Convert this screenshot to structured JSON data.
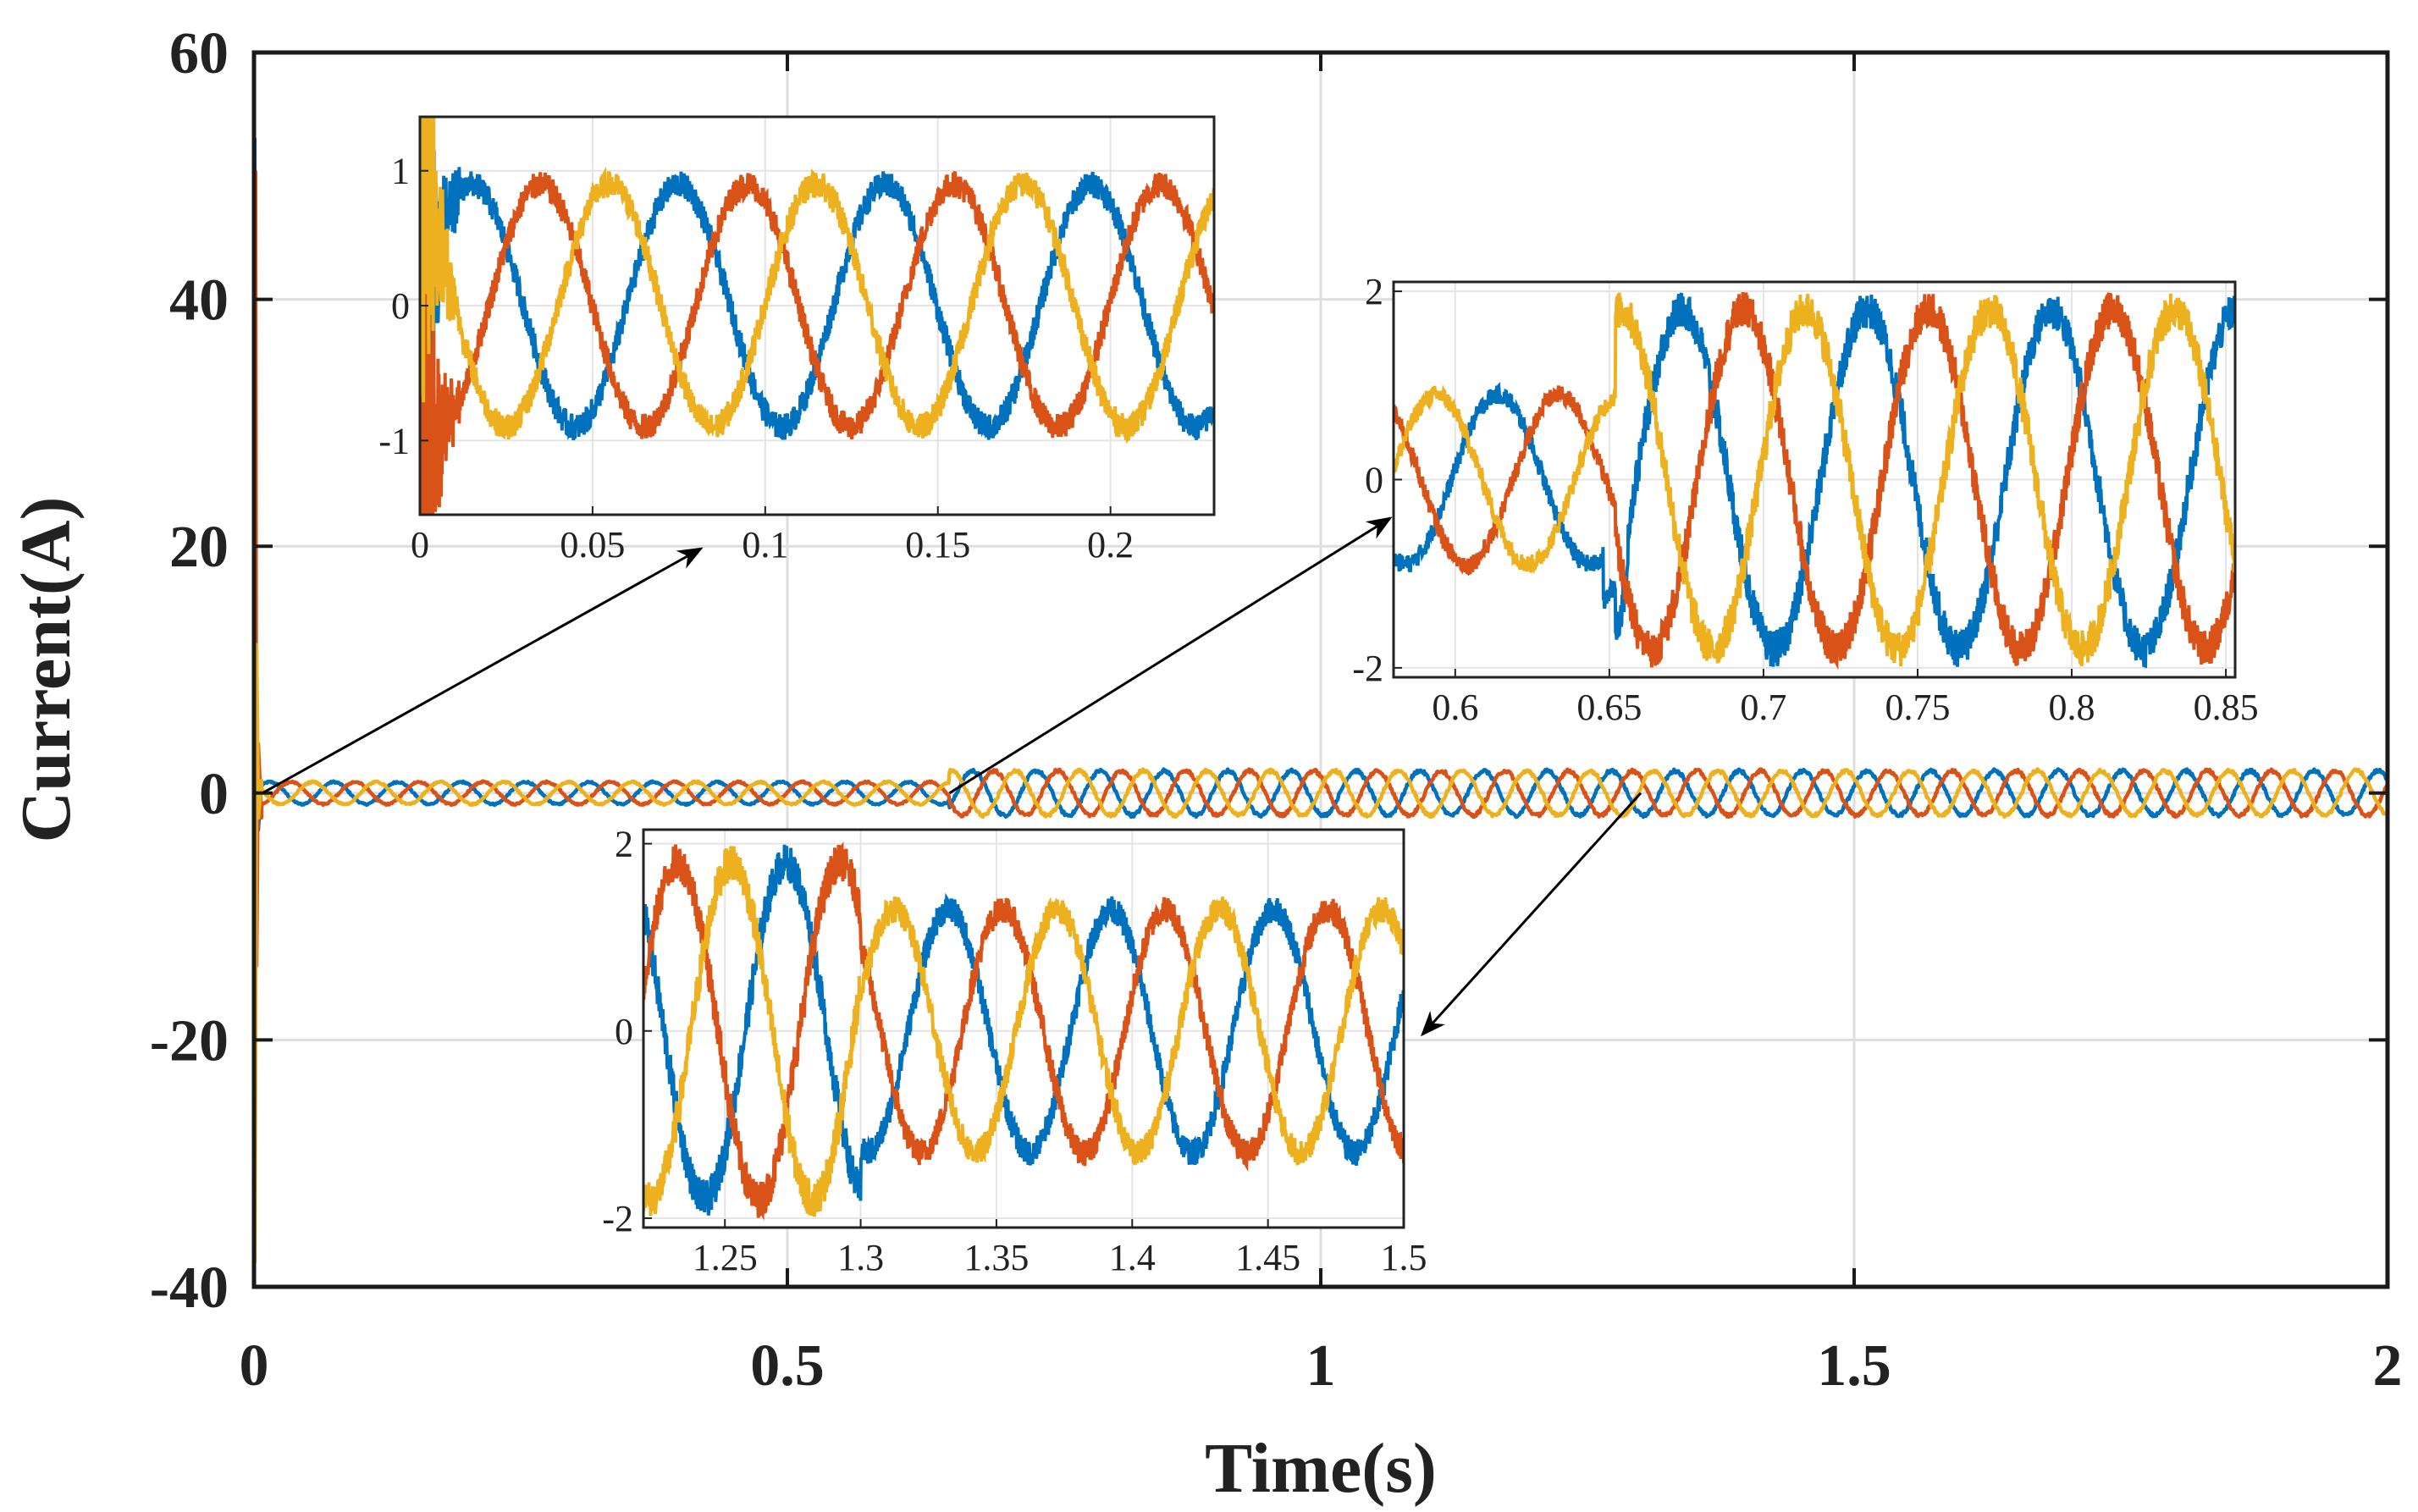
{
  "chart_data": {
    "type": "line",
    "main": {
      "xlabel": "Time(s)",
      "ylabel": "Current(A)",
      "xlim": [
        0,
        2
      ],
      "ylim": [
        -40,
        60
      ],
      "xticks": [
        0,
        0.5,
        1,
        1.5,
        2
      ],
      "xtick_labels": [
        "0",
        "0.5",
        "1",
        "1.5",
        "2"
      ],
      "yticks": [
        60,
        40,
        20,
        0,
        -20,
        -40
      ],
      "ytick_labels": [
        "60",
        "40",
        "20",
        "0",
        "-20",
        "-40"
      ],
      "grid": true,
      "startup_transient": {
        "peak_max": 53,
        "peak_min": -38,
        "settle_time": 0.012
      },
      "amplitude_before": 0.9,
      "amplitude_after": 1.8,
      "step_time": 0.652,
      "frequency_hz": 16.7
    },
    "series": [
      {
        "phase_deg": 0,
        "color": "#0072BD"
      },
      {
        "phase_deg": -120,
        "color": "#D95319"
      },
      {
        "phase_deg": 120,
        "color": "#EDB120"
      }
    ],
    "insets": [
      {
        "xlim": [
          0,
          0.23
        ],
        "ylim": [
          -1.55,
          1.4
        ],
        "xticks": [
          0,
          0.05,
          0.1,
          0.15,
          0.2
        ],
        "xtick_labels": [
          "0",
          "0.05",
          "0.1",
          "0.15",
          "0.2"
        ],
        "yticks": [
          1,
          0,
          -1
        ],
        "ytick_labels": [
          "1",
          "0",
          "-1"
        ],
        "amplitude": 0.9,
        "source_point": [
          0.0,
          0.0
        ]
      },
      {
        "xlim": [
          0.58,
          0.853
        ],
        "ylim": [
          -2.1,
          2.1
        ],
        "xticks": [
          0.6,
          0.65,
          0.7,
          0.75,
          0.8,
          0.85
        ],
        "xtick_labels": [
          "0.6",
          "0.65",
          "0.7",
          "0.75",
          "0.8",
          "0.85"
        ],
        "yticks": [
          2,
          0,
          -2
        ],
        "ytick_labels": [
          "2",
          "0",
          "-2"
        ],
        "amplitude_before": 0.9,
        "amplitude_after": 1.8,
        "step_time": 0.652,
        "source_point": [
          0.652,
          0.0
        ]
      },
      {
        "xlim": [
          1.22,
          1.5
        ],
        "ylim": [
          -2.1,
          2.15
        ],
        "xticks": [
          1.25,
          1.3,
          1.35,
          1.4,
          1.45,
          1.5
        ],
        "xtick_labels": [
          "1.25",
          "1.3",
          "1.35",
          "1.4",
          "1.45",
          "1.5"
        ],
        "yticks": [
          2,
          0,
          -2
        ],
        "ytick_labels": [
          "2",
          "0",
          "-2"
        ],
        "amplitude": 1.8,
        "amplitude_dip": 1.3,
        "dip_time": 1.3,
        "source_point": [
          1.3,
          0.0
        ]
      }
    ]
  }
}
